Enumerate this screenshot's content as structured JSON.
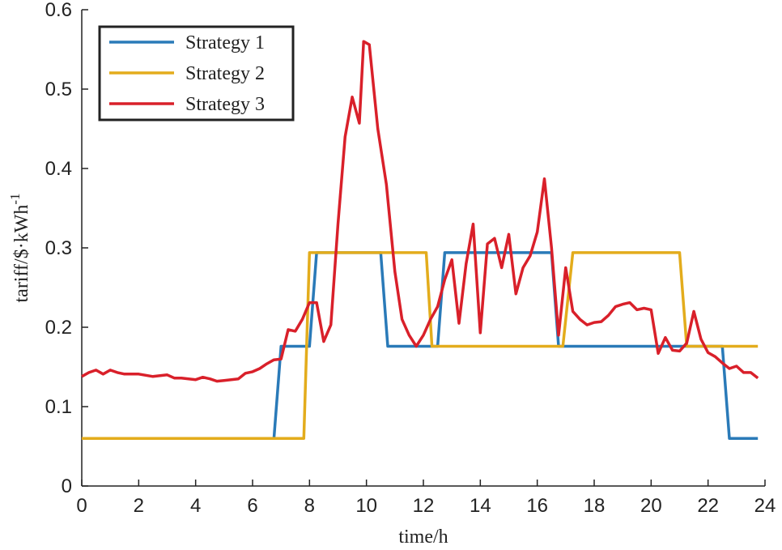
{
  "chart_data": {
    "type": "line",
    "xlabel": "time/h",
    "ylabel": "tariff/$·kWh",
    "ylabel_superscript": "-1",
    "xlim": [
      0,
      24
    ],
    "ylim": [
      0,
      0.6
    ],
    "xticks": [
      0,
      2,
      4,
      6,
      8,
      10,
      12,
      14,
      16,
      18,
      20,
      22,
      24
    ],
    "yticks": [
      0,
      0.1,
      0.2,
      0.3,
      0.4,
      0.5,
      0.6
    ],
    "legend": "upper left",
    "series": [
      {
        "name": "Strategy 1",
        "color": "#2a7ab8",
        "x": [
          0,
          6.75,
          7.0,
          8.0,
          8.25,
          10.5,
          10.75,
          12.5,
          12.75,
          16.5,
          16.75,
          22.5,
          22.75,
          23.75
        ],
        "values": [
          0.06,
          0.06,
          0.176,
          0.176,
          0.294,
          0.294,
          0.176,
          0.176,
          0.294,
          0.294,
          0.176,
          0.176,
          0.06,
          0.06
        ]
      },
      {
        "name": "Strategy 2",
        "color": "#e3ac1c",
        "x": [
          0,
          7.8,
          8.0,
          12.1,
          12.3,
          16.9,
          17.25,
          21.0,
          21.25,
          23.75
        ],
        "values": [
          0.06,
          0.06,
          0.294,
          0.294,
          0.176,
          0.176,
          0.294,
          0.294,
          0.176,
          0.176
        ]
      },
      {
        "name": "Strategy 3",
        "color": "#d9202a",
        "x": [
          0,
          0.25,
          0.5,
          0.75,
          1,
          1.25,
          1.5,
          2,
          2.5,
          3,
          3.25,
          3.5,
          4,
          4.25,
          4.5,
          4.75,
          5,
          5.5,
          5.75,
          6,
          6.25,
          6.5,
          6.75,
          7,
          7.25,
          7.5,
          7.75,
          8,
          8.25,
          8.5,
          8.75,
          9,
          9.25,
          9.5,
          9.75,
          9.9,
          10.1,
          10.4,
          10.7,
          11,
          11.25,
          11.5,
          11.75,
          12,
          12.25,
          12.5,
          12.75,
          13,
          13.25,
          13.5,
          13.75,
          14,
          14.25,
          14.5,
          14.75,
          15,
          15.25,
          15.5,
          15.75,
          16,
          16.25,
          16.5,
          16.75,
          17,
          17.25,
          17.5,
          17.75,
          18,
          18.25,
          18.5,
          18.75,
          19,
          19.25,
          19.5,
          19.75,
          20,
          20.25,
          20.5,
          20.75,
          21,
          21.25,
          21.5,
          21.75,
          22,
          22.25,
          22.5,
          22.75,
          23,
          23.25,
          23.5,
          23.75
        ],
        "values": [
          0.138,
          0.143,
          0.146,
          0.141,
          0.146,
          0.143,
          0.141,
          0.141,
          0.138,
          0.14,
          0.136,
          0.136,
          0.134,
          0.137,
          0.135,
          0.132,
          0.133,
          0.135,
          0.142,
          0.144,
          0.148,
          0.154,
          0.159,
          0.16,
          0.197,
          0.195,
          0.21,
          0.231,
          0.231,
          0.182,
          0.203,
          0.33,
          0.44,
          0.49,
          0.457,
          0.56,
          0.556,
          0.45,
          0.38,
          0.27,
          0.21,
          0.19,
          0.176,
          0.19,
          0.21,
          0.226,
          0.26,
          0.285,
          0.205,
          0.28,
          0.33,
          0.193,
          0.305,
          0.312,
          0.275,
          0.317,
          0.242,
          0.275,
          0.29,
          0.32,
          0.387,
          0.3,
          0.19,
          0.275,
          0.22,
          0.21,
          0.203,
          0.206,
          0.207,
          0.215,
          0.226,
          0.229,
          0.231,
          0.222,
          0.224,
          0.222,
          0.167,
          0.187,
          0.171,
          0.17,
          0.18,
          0.22,
          0.185,
          0.168,
          0.163,
          0.155,
          0.148,
          0.151,
          0.143,
          0.143,
          0.136
        ]
      }
    ]
  }
}
